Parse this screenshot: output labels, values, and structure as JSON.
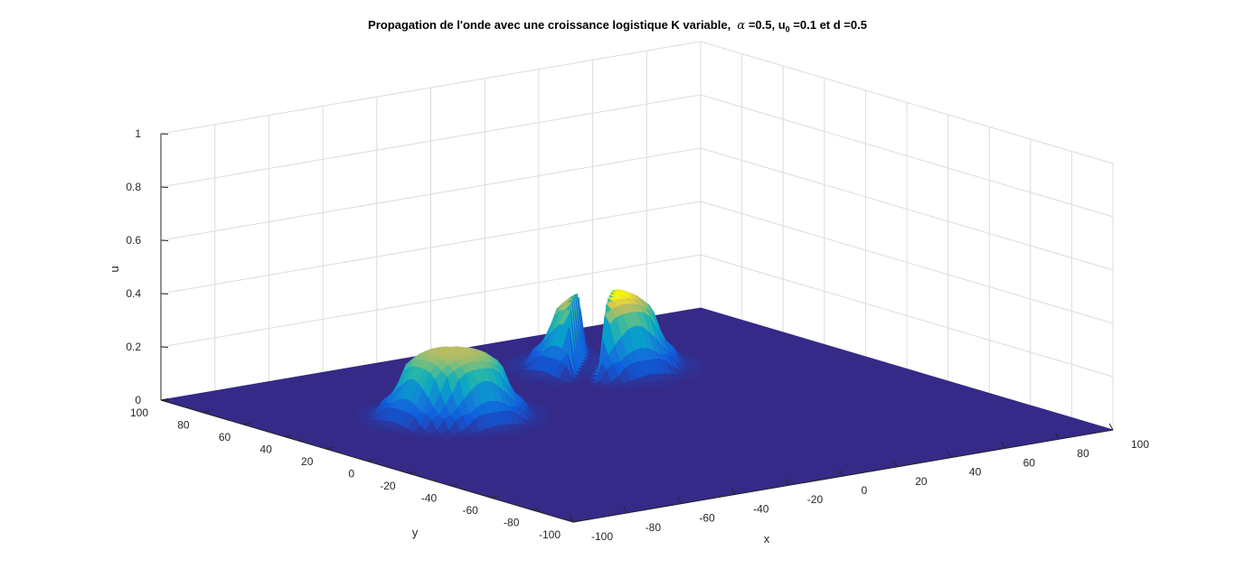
{
  "chart_data": {
    "type": "surface",
    "title_parts": {
      "prefix": "Propagation de l'onde avec une croissance logistique K variable,",
      "alpha_symbol": "α",
      "alpha_value": "=0.5, u",
      "u_sub": "0",
      "rest": "=0.1 et d =0.5"
    },
    "xlabel": "x",
    "ylabel": "y",
    "zlabel": "u",
    "xlim": [
      -100,
      100
    ],
    "ylim": [
      -100,
      100
    ],
    "zlim": [
      0,
      1
    ],
    "xticks": [
      "-100",
      "-80",
      "-60",
      "-40",
      "-20",
      "0",
      "20",
      "40",
      "60",
      "80",
      "100"
    ],
    "yticks": [
      "-100",
      "-80",
      "-60",
      "-40",
      "-20",
      "0",
      "20",
      "40",
      "60",
      "80",
      "100"
    ],
    "zticks": [
      "0",
      "0.2",
      "0.4",
      "0.6",
      "0.8",
      "1"
    ],
    "grid": true,
    "colormap": "parula",
    "colors": {
      "low": "#352a87",
      "mid": "#21b0c8",
      "high": "#f9fb0e"
    },
    "surface_features": [
      {
        "name": "left-lobe",
        "center_x": -45,
        "center_y": 30,
        "peak_u": 0.25
      },
      {
        "name": "right-lobe",
        "center_x": 30,
        "center_y": 55,
        "peak_u": 0.28
      }
    ]
  }
}
